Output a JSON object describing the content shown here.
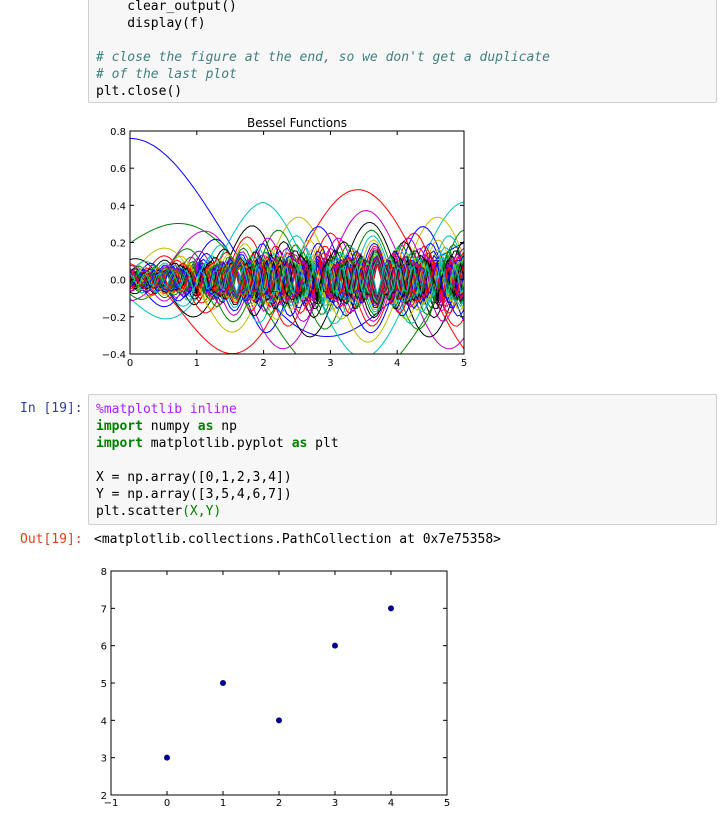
{
  "cell_top": {
    "lines": [
      "    clear_output()",
      "    display(f)",
      "",
      "# close the figure at the end, so we don't get a duplicate",
      "# of the last plot",
      "plt.close()"
    ]
  },
  "cell_19": {
    "in_prompt": "In [19]:",
    "out_prompt": "Out[19]:",
    "code": {
      "l1": "%matplotlib inline",
      "l2a": "import",
      "l2b": " numpy ",
      "l2c": "as",
      "l2d": " np",
      "l3a": "import",
      "l3b": " matplotlib.pyplot ",
      "l3c": "as",
      "l3d": " plt",
      "l5": "X = np.array([0,1,2,3,4])",
      "l6": "Y = np.array([3,5,4,6,7])",
      "l7a": "plt.scatter",
      "l7b": "(X,Y)"
    },
    "output_text": "<matplotlib.collections.PathCollection at 0x7e75358>"
  },
  "chart_data": [
    {
      "type": "line",
      "title": "Bessel Functions",
      "xlabel": "",
      "ylabel": "",
      "xlim": [
        0,
        5
      ],
      "ylim": [
        -0.4,
        0.8
      ],
      "xticks": [
        "0",
        "1",
        "2",
        "3",
        "4",
        "5"
      ],
      "yticks": [
        "−0.4",
        "−0.2",
        "0.0",
        "0.2",
        "0.4",
        "0.6",
        "0.8"
      ],
      "grid": false,
      "series_description_source": "many Bessel function curves (J_n of x) for increasing orders, drawn in cycling matplotlib colors",
      "series_colors": [
        "#0000ff",
        "#008000",
        "#ff0000",
        "#00bfbf",
        "#bf00bf",
        "#bfbf00",
        "#000000"
      ],
      "series": [
        {
          "values_x": [
            0,
            0.25,
            0.5,
            0.75,
            1,
            1.25,
            1.5,
            1.75,
            2,
            2.25,
            2.5,
            2.75,
            3,
            3.25,
            3.5,
            3.75,
            4,
            4.25,
            4.5,
            4.75,
            5
          ],
          "peak": 0.76
        }
      ]
    },
    {
      "type": "scatter",
      "title": "",
      "xlabel": "",
      "ylabel": "",
      "x": [
        0,
        1,
        2,
        3,
        4
      ],
      "y": [
        3,
        5,
        4,
        6,
        7
      ],
      "xlim": [
        -1,
        5
      ],
      "ylim": [
        2,
        8
      ],
      "xticks": [
        "−1",
        "0",
        "1",
        "2",
        "3",
        "4",
        "5"
      ],
      "yticks": [
        "2",
        "3",
        "4",
        "5",
        "6",
        "7",
        "8"
      ],
      "marker_color": "#00008b",
      "grid": false
    }
  ]
}
